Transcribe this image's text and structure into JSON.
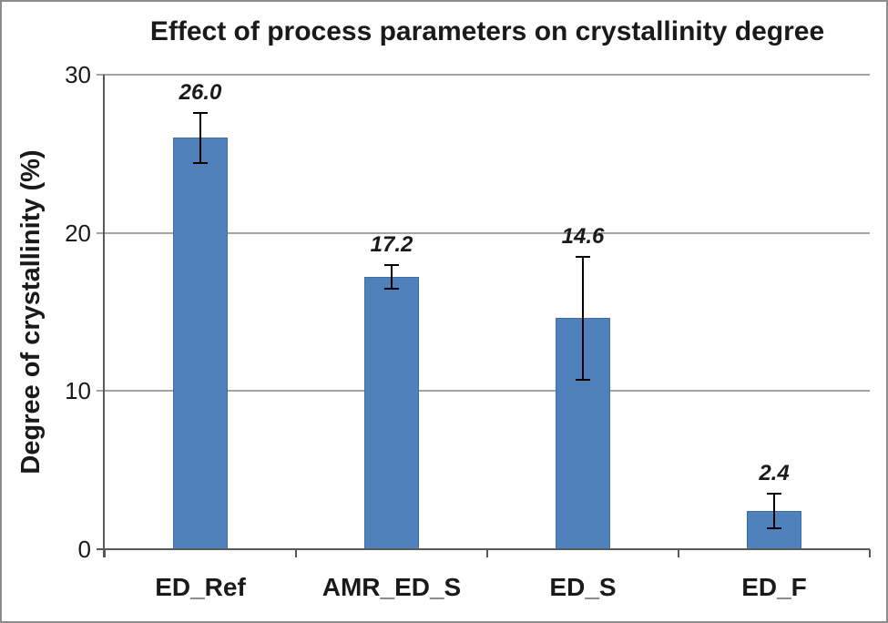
{
  "chart_data": {
    "type": "bar",
    "title": "Effect of process parameters on crystallinity degree",
    "xlabel": "",
    "ylabel": "Degree of crystallinity (%)",
    "categories": [
      "ED_Ref",
      "AMR_ED_S",
      "ED_S",
      "ED_F"
    ],
    "values": [
      26.0,
      17.2,
      14.6,
      2.4
    ],
    "value_labels": [
      "26.0",
      "17.2",
      "14.6",
      "2.4"
    ],
    "error_bars": [
      1.6,
      0.75,
      3.9,
      1.1
    ],
    "ylim": [
      0,
      30
    ],
    "yticks": [
      0,
      10,
      20,
      30
    ],
    "grid": "horizontal",
    "legend": "none",
    "colors": {
      "bar_fill": "#4F81BD",
      "bar_border": "#3D6DA3",
      "gridline": "#A3A3A3",
      "axis": "#595959",
      "error_bar": "#000000",
      "text": "#1A1A1A",
      "frame_border": "#8C8C8C",
      "background": "#FFFFFF"
    }
  }
}
